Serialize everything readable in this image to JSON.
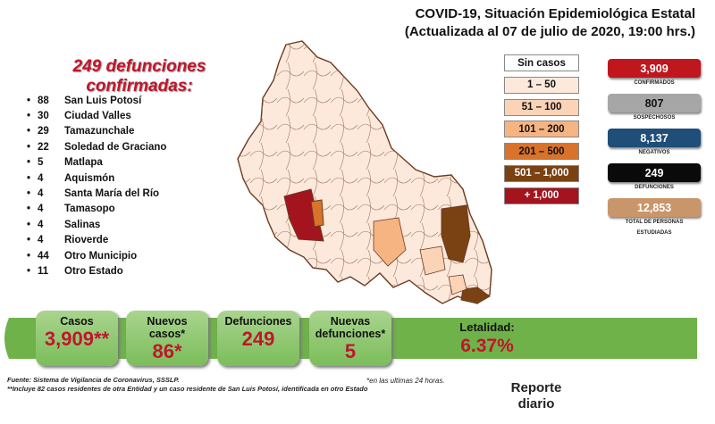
{
  "header": {
    "title_line1": "COVID-19, Situación Epidemiológica Estatal",
    "title_line2": "(Actualizada al 07 de julio de 2020, 19:00 hrs.)"
  },
  "headline": "249 defunciones confirmadas:",
  "deaths_by_municipality": [
    {
      "bullet": "•",
      "count": "88",
      "name": "San Luis Potosí"
    },
    {
      "bullet": "•",
      "count": "30",
      "name": "Ciudad Valles"
    },
    {
      "bullet": "•",
      "count": "29",
      "name": "Tamazunchale"
    },
    {
      "bullet": "•",
      "count": "22",
      "name": "Soledad de Graciano"
    },
    {
      "bullet": "•",
      "count": "5",
      "name": "Matlapa"
    },
    {
      "bullet": "•",
      "count": "4",
      "name": "Aquismón"
    },
    {
      "bullet": "•",
      "count": "4",
      "name": "Santa María del Río"
    },
    {
      "bullet": "•",
      "count": "4",
      "name": "Tamasopo"
    },
    {
      "bullet": "•",
      "count": "4",
      "name": "Salinas"
    },
    {
      "bullet": "•",
      "count": "4",
      "name": "Rioverde"
    },
    {
      "bullet": "•",
      "count": "44",
      "name": "Otro Municipio"
    },
    {
      "bullet": "•",
      "count": "11",
      "name": "Otro Estado"
    }
  ],
  "legend": [
    {
      "label": "Sin casos",
      "color": "#ffffff",
      "text_color": "#111111"
    },
    {
      "label": "1 – 50",
      "color": "#fde9dc",
      "text_color": "#111111"
    },
    {
      "label": "51 – 100",
      "color": "#fbd3b7",
      "text_color": "#111111"
    },
    {
      "label": "101 – 200",
      "color": "#f6b483",
      "text_color": "#111111"
    },
    {
      "label": "201 – 500",
      "color": "#d9732c",
      "text_color": "#111111"
    },
    {
      "label": "501 – 1,000",
      "color": "#7a4213",
      "text_color": "#ffffff"
    },
    {
      "label": "+ 1,000",
      "color": "#a3141f",
      "text_color": "#ffffff"
    }
  ],
  "stats": [
    {
      "value": "3,909",
      "label": "CONFIRMADOS",
      "color": "#c0161e",
      "text_color": "#ffffff"
    },
    {
      "value": "807",
      "label": "SOSPECHOSOS",
      "color": "#a6a6a6",
      "text_color": "#111111"
    },
    {
      "value": "8,137",
      "label": "NEGATIVOS",
      "color": "#1f4e79",
      "text_color": "#ffffff"
    },
    {
      "value": "249",
      "label": "DEFUNCIONES",
      "color": "#0a0a0a",
      "text_color": "#ffffff"
    },
    {
      "value": "12,853",
      "label": "TOTAL DE PERSONAS ESTUDIADAS",
      "color": "#c9956a",
      "text_color": "#ffffff"
    }
  ],
  "summary": {
    "casos_label": "Casos",
    "casos_value": "3,909**",
    "nuevos_label": "Nuevos casos*",
    "nuevos_value": "86*",
    "defunciones_label": "Defunciones",
    "defunciones_value": "249",
    "nuevas_def_label": "Nuevas defunciones*",
    "nuevas_def_value": "5",
    "letalidad_label": "Letalidad:",
    "letalidad_value": "6.37%"
  },
  "footnotes": {
    "source": "Fuente: Sistema de Vigilancia de Coronavirus, SSSLP.",
    "note1": "*en las ultimas 24 horas.",
    "note2": "**Incluye 82 casos residentes de otra Entidad y un caso residente de San Luis Potosí, identificada en otro Estado"
  },
  "report_label": "Reporte diario"
}
